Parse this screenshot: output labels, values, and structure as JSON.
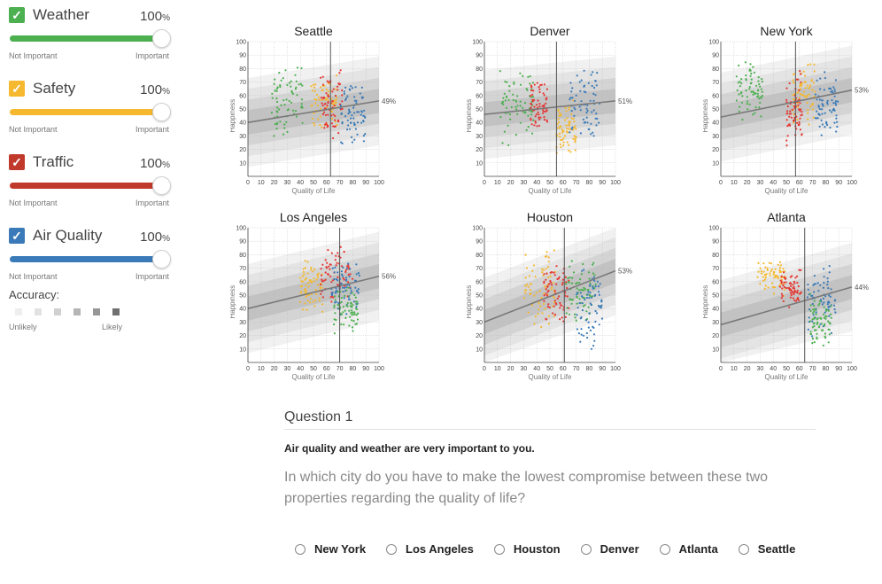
{
  "factors": [
    {
      "name": "Weather",
      "value": "100",
      "pct_sign": "%",
      "color": "#4caf50",
      "min_label": "Not Important",
      "max_label": "Important"
    },
    {
      "name": "Safety",
      "value": "100",
      "pct_sign": "%",
      "color": "#f5b82e",
      "min_label": "Not Important",
      "max_label": "Important"
    },
    {
      "name": "Traffic",
      "value": "100",
      "pct_sign": "%",
      "color": "#c0392b",
      "min_label": "Not Important",
      "max_label": "Important"
    },
    {
      "name": "Air Quality",
      "value": "100",
      "pct_sign": "%",
      "color": "#3a7ab8",
      "min_label": "Not Important",
      "max_label": "Important"
    }
  ],
  "accuracy": {
    "label": "Accuracy:",
    "min_label": "Unlikely",
    "max_label": "Likely",
    "shades": [
      "#eeeeee",
      "#e2e2e2",
      "#d0d0d0",
      "#b5b5b5",
      "#969696",
      "#707070"
    ]
  },
  "chart_data": [
    {
      "type": "scatter",
      "title": "Seattle",
      "xlabel": "Quality of Life",
      "ylabel": "Happiness",
      "xlim": [
        0,
        100
      ],
      "ylim": [
        0,
        100
      ],
      "xticks": [
        0,
        10,
        20,
        30,
        40,
        50,
        60,
        70,
        80,
        90,
        100
      ],
      "yticks": [
        10,
        20,
        30,
        40,
        50,
        60,
        70,
        80,
        90,
        100
      ],
      "marker_x": 63,
      "trend": [
        40,
        56
      ],
      "result_label": "49%",
      "clusters": [
        {
          "color": "#4caf50",
          "x": [
            18,
            42
          ],
          "y": [
            30,
            82
          ]
        },
        {
          "color": "#f5b82e",
          "x": [
            48,
            68
          ],
          "y": [
            35,
            75
          ]
        },
        {
          "color": "#e53935",
          "x": [
            55,
            72
          ],
          "y": [
            25,
            80
          ]
        },
        {
          "color": "#3a7ab8",
          "x": [
            70,
            90
          ],
          "y": [
            25,
            68
          ]
        }
      ]
    },
    {
      "type": "scatter",
      "title": "Denver",
      "xlabel": "Quality of Life",
      "ylabel": "Happiness",
      "xlim": [
        0,
        100
      ],
      "ylim": [
        0,
        100
      ],
      "xticks": [
        0,
        10,
        20,
        30,
        40,
        50,
        60,
        70,
        80,
        90,
        100
      ],
      "yticks": [
        10,
        20,
        30,
        40,
        50,
        60,
        70,
        80,
        90,
        100
      ],
      "marker_x": 55,
      "trend": [
        46,
        56
      ],
      "result_label": "51%",
      "clusters": [
        {
          "color": "#4caf50",
          "x": [
            12,
            38
          ],
          "y": [
            25,
            80
          ]
        },
        {
          "color": "#e53935",
          "x": [
            35,
            48
          ],
          "y": [
            35,
            70
          ]
        },
        {
          "color": "#f5b82e",
          "x": [
            55,
            70
          ],
          "y": [
            15,
            58
          ]
        },
        {
          "color": "#3a7ab8",
          "x": [
            65,
            88
          ],
          "y": [
            30,
            80
          ]
        }
      ]
    },
    {
      "type": "scatter",
      "title": "New York",
      "xlabel": "Quality of Life",
      "ylabel": "Happiness",
      "xlim": [
        0,
        100
      ],
      "ylim": [
        0,
        100
      ],
      "xticks": [
        0,
        10,
        20,
        30,
        40,
        50,
        60,
        70,
        80,
        90,
        100
      ],
      "yticks": [
        10,
        20,
        30,
        40,
        50,
        60,
        70,
        80,
        90,
        100
      ],
      "marker_x": 57,
      "trend": [
        44,
        64
      ],
      "result_label": "53%",
      "clusters": [
        {
          "color": "#4caf50",
          "x": [
            12,
            32
          ],
          "y": [
            40,
            86
          ]
        },
        {
          "color": "#f5b82e",
          "x": [
            55,
            72
          ],
          "y": [
            40,
            85
          ]
        },
        {
          "color": "#e53935",
          "x": [
            50,
            62
          ],
          "y": [
            18,
            78
          ]
        },
        {
          "color": "#3a7ab8",
          "x": [
            72,
            90
          ],
          "y": [
            28,
            80
          ]
        }
      ]
    },
    {
      "type": "scatter",
      "title": "Los Angeles",
      "xlabel": "Quality of Life",
      "ylabel": "Happiness",
      "xlim": [
        0,
        100
      ],
      "ylim": [
        0,
        100
      ],
      "xticks": [
        0,
        10,
        20,
        30,
        40,
        50,
        60,
        70,
        80,
        90,
        100
      ],
      "yticks": [
        10,
        20,
        30,
        40,
        50,
        60,
        70,
        80,
        90,
        100
      ],
      "marker_x": 70,
      "trend": [
        40,
        64
      ],
      "result_label": "56%",
      "clusters": [
        {
          "color": "#f5b82e",
          "x": [
            40,
            58
          ],
          "y": [
            33,
            75
          ]
        },
        {
          "color": "#e53935",
          "x": [
            55,
            80
          ],
          "y": [
            45,
            86
          ]
        },
        {
          "color": "#3a7ab8",
          "x": [
            62,
            85
          ],
          "y": [
            35,
            75
          ]
        },
        {
          "color": "#4caf50",
          "x": [
            65,
            85
          ],
          "y": [
            23,
            55
          ]
        }
      ]
    },
    {
      "type": "scatter",
      "title": "Houston",
      "xlabel": "Quality of Life",
      "ylabel": "Happiness",
      "xlim": [
        0,
        100
      ],
      "ylim": [
        0,
        100
      ],
      "xticks": [
        0,
        10,
        20,
        30,
        40,
        50,
        60,
        70,
        80,
        90,
        100
      ],
      "yticks": [
        10,
        20,
        30,
        40,
        50,
        60,
        70,
        80,
        90,
        100
      ],
      "marker_x": 61,
      "trend": [
        30,
        68
      ],
      "result_label": "53%",
      "clusters": [
        {
          "color": "#f5b82e",
          "x": [
            30,
            55
          ],
          "y": [
            25,
            86
          ]
        },
        {
          "color": "#e53935",
          "x": [
            45,
            65
          ],
          "y": [
            30,
            75
          ]
        },
        {
          "color": "#4caf50",
          "x": [
            62,
            85
          ],
          "y": [
            30,
            78
          ]
        },
        {
          "color": "#3a7ab8",
          "x": [
            70,
            90
          ],
          "y": [
            12,
            72
          ]
        }
      ]
    },
    {
      "type": "scatter",
      "title": "Atlanta",
      "xlabel": "Quality of Life",
      "ylabel": "Happiness",
      "xlim": [
        0,
        100
      ],
      "ylim": [
        0,
        100
      ],
      "xticks": [
        0,
        10,
        20,
        30,
        40,
        50,
        60,
        70,
        80,
        90,
        100
      ],
      "yticks": [
        10,
        20,
        30,
        40,
        50,
        60,
        70,
        80,
        90,
        100
      ],
      "marker_x": 64,
      "trend": [
        28,
        56
      ],
      "result_label": "44%",
      "clusters": [
        {
          "color": "#f5b82e",
          "x": [
            28,
            50
          ],
          "y": [
            50,
            77
          ]
        },
        {
          "color": "#e53935",
          "x": [
            45,
            62
          ],
          "y": [
            40,
            70
          ]
        },
        {
          "color": "#3a7ab8",
          "x": [
            66,
            88
          ],
          "y": [
            20,
            70
          ]
        },
        {
          "color": "#4caf50",
          "x": [
            68,
            85
          ],
          "y": [
            12,
            50
          ]
        }
      ]
    }
  ],
  "question": {
    "title": "Question 1",
    "statement": "Air quality and weather are very important to you.",
    "text": "In which city do you have to make the lowest compromise between these two properties regarding the quality of life?"
  },
  "answers": [
    "New York",
    "Los Angeles",
    "Houston",
    "Denver",
    "Atlanta",
    "Seattle"
  ]
}
